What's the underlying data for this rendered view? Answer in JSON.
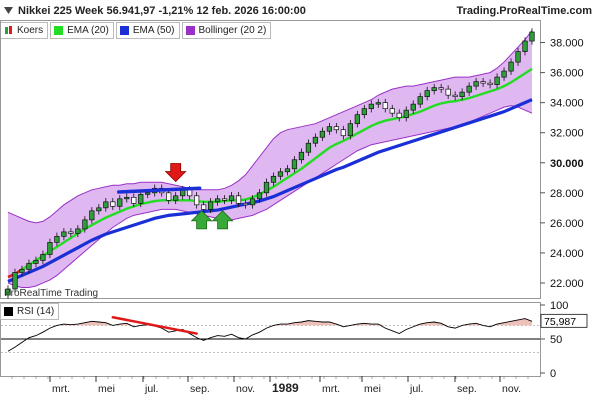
{
  "title": {
    "text": "Nikkei 225 Week 56.941,97 -1,21% 12 feb. 2026 16:00:00",
    "brand": "Trading.ProRealTime.com"
  },
  "legend": [
    {
      "label": "Koers",
      "color": "#2e9e3a",
      "icon": "candle-icon"
    },
    {
      "label": "EMA (20)",
      "color": "#22dd22",
      "icon": "line-swatch-icon"
    },
    {
      "label": "EMA (50)",
      "color": "#1a2fd6",
      "icon": "line-swatch-icon"
    },
    {
      "label": "Bollinger (20 2)",
      "color": "#9b30c8",
      "icon": "band-swatch-icon"
    }
  ],
  "watermark": "ProRealTime Trading",
  "rsi_legend": {
    "label": "RSI (14)",
    "color": "#000000"
  },
  "price_axis": {
    "ticks": [
      "38.000",
      "36.000",
      "34.000",
      "32.000",
      "30.000",
      "28.000",
      "26.000",
      "24.000",
      "22.000"
    ],
    "tick_values": [
      38000,
      36000,
      34000,
      32000,
      30000,
      28000,
      26000,
      24000,
      22000
    ],
    "highlight": "30.000"
  },
  "rsi_axis": {
    "ticks": [
      "100",
      "50",
      "0"
    ],
    "tick_values": [
      100,
      50,
      0
    ],
    "current_value": "75,987"
  },
  "time_axis": [
    "mrt.",
    "mei",
    "jul.",
    "sep.",
    "nov.",
    "1989",
    "mrt.",
    "mei",
    "jul.",
    "sep.",
    "nov."
  ],
  "colors": {
    "up_candle": "#2e9e3a",
    "down_candle": "#111111",
    "ema20": "#22dd22",
    "ema50": "#1a2fd6",
    "bollinger_fill": "#d9aaee",
    "bollinger_line": "#9b30c8",
    "annotation_red": "#e01818",
    "annotation_green": "#38a838",
    "resistance_line": "#1a2fd6"
  },
  "chart_data": {
    "type": "candlestick",
    "title": "Nikkei 225 Week 56.941,97 -1,21% 12 feb. 2026 16:00:00",
    "ylim": [
      21000,
      39500
    ],
    "close": [
      21600,
      22700,
      22900,
      23300,
      23500,
      23900,
      24700,
      25100,
      25400,
      25300,
      25600,
      26200,
      26800,
      27000,
      27400,
      27100,
      27600,
      27700,
      27300,
      27900,
      28000,
      28300,
      28000,
      27500,
      27800,
      28200,
      27800,
      27200,
      26900,
      27400,
      27600,
      27500,
      27800,
      27300,
      27200,
      27600,
      28000,
      28700,
      29100,
      29400,
      29600,
      30200,
      30700,
      31300,
      31700,
      32100,
      32400,
      32200,
      31800,
      32600,
      33200,
      33600,
      33900,
      34000,
      33600,
      33300,
      33000,
      33500,
      33900,
      34400,
      34800,
      35000,
      34900,
      34500,
      34400,
      34700,
      35100,
      35400,
      35300,
      35200,
      35700,
      36100,
      36700,
      37400,
      38100,
      38700
    ],
    "ema20": [
      22400,
      22600,
      22900,
      23200,
      23500,
      23800,
      24100,
      24400,
      24700,
      25000,
      25300,
      25600,
      25850,
      26100,
      26350,
      26550,
      26750,
      26950,
      27100,
      27250,
      27350,
      27450,
      27500,
      27500,
      27500,
      27500,
      27500,
      27450,
      27400,
      27400,
      27400,
      27450,
      27500,
      27500,
      27550,
      27700,
      27900,
      28150,
      28400,
      28700,
      29000,
      29300,
      29600,
      29950,
      30300,
      30650,
      31000,
      31250,
      31450,
      31700,
      31950,
      32200,
      32450,
      32650,
      32800,
      32900,
      33000,
      33100,
      33250,
      33400,
      33600,
      33800,
      33950,
      34050,
      34100,
      34200,
      34300,
      34450,
      34600,
      34750,
      34900,
      35100,
      35350,
      35650,
      35950,
      36250
    ],
    "ema50": [
      22100,
      22300,
      22500,
      22700,
      22900,
      23100,
      23350,
      23600,
      23850,
      24100,
      24350,
      24600,
      24850,
      25050,
      25250,
      25400,
      25550,
      25700,
      25850,
      26000,
      26150,
      26300,
      26400,
      26500,
      26550,
      26600,
      26650,
      26700,
      26750,
      26800,
      26850,
      26950,
      27050,
      27150,
      27250,
      27350,
      27450,
      27600,
      27750,
      27950,
      28150,
      28350,
      28550,
      28750,
      28950,
      29150,
      29350,
      29550,
      29700,
      29900,
      30100,
      30300,
      30500,
      30700,
      30850,
      31000,
      31150,
      31300,
      31450,
      31600,
      31750,
      31900,
      32050,
      32200,
      32350,
      32500,
      32650,
      32800,
      32950,
      33100,
      33250,
      33400,
      33600,
      33800,
      34000,
      34200
    ],
    "bb_upper": [
      26700,
      26500,
      26300,
      26100,
      26000,
      26100,
      26400,
      26800,
      27200,
      27500,
      27800,
      28000,
      28200,
      28300,
      28400,
      28500,
      28500,
      28600,
      28600,
      28700,
      28700,
      28700,
      28700,
      28600,
      28500,
      28400,
      28300,
      28200,
      28200,
      28200,
      28200,
      28300,
      28500,
      28800,
      29200,
      29800,
      30400,
      31000,
      31600,
      32000,
      32200,
      32300,
      32400,
      32500,
      32600,
      32800,
      33000,
      33200,
      33400,
      33600,
      33800,
      34000,
      34200,
      34500,
      34700,
      34900,
      35000,
      35100,
      35100,
      35200,
      35300,
      35400,
      35500,
      35600,
      35700,
      35700,
      35700,
      35800,
      35900,
      36000,
      36300,
      36700,
      37200,
      37700,
      38200,
      38800
    ],
    "bb_lower": [
      22000,
      21800,
      21700,
      21700,
      21800,
      22000,
      22200,
      22500,
      22900,
      23300,
      23700,
      24100,
      24500,
      24900,
      25300,
      25700,
      26000,
      26300,
      26500,
      26600,
      26700,
      26800,
      26900,
      26900,
      26900,
      26800,
      26700,
      26600,
      26500,
      26400,
      26300,
      26200,
      26200,
      26300,
      26400,
      26500,
      26700,
      26900,
      27200,
      27500,
      27800,
      28100,
      28400,
      28700,
      29000,
      29300,
      29600,
      29900,
      30200,
      30500,
      30800,
      31000,
      31200,
      31300,
      31400,
      31500,
      31600,
      31700,
      31800,
      31900,
      32000,
      32100,
      32200,
      32300,
      32400,
      32500,
      32700,
      32900,
      33100,
      33300,
      33500,
      33700,
      33800,
      33700,
      33500,
      33300
    ],
    "rsi": [
      32,
      38,
      45,
      52,
      55,
      60,
      66,
      70,
      72,
      71,
      72,
      74,
      76,
      75,
      74,
      70,
      72,
      73,
      68,
      70,
      71,
      69,
      66,
      60,
      62,
      64,
      58,
      52,
      48,
      52,
      55,
      54,
      57,
      52,
      50,
      56,
      60,
      66,
      70,
      72,
      72,
      74,
      75,
      77,
      76,
      75,
      75,
      72,
      68,
      70,
      72,
      73,
      72,
      72,
      66,
      62,
      58,
      64,
      68,
      72,
      74,
      75,
      73,
      68,
      66,
      70,
      72,
      73,
      70,
      68,
      72,
      74,
      76,
      78,
      80,
      76
    ],
    "rsi_ylim": [
      0,
      100
    ]
  }
}
